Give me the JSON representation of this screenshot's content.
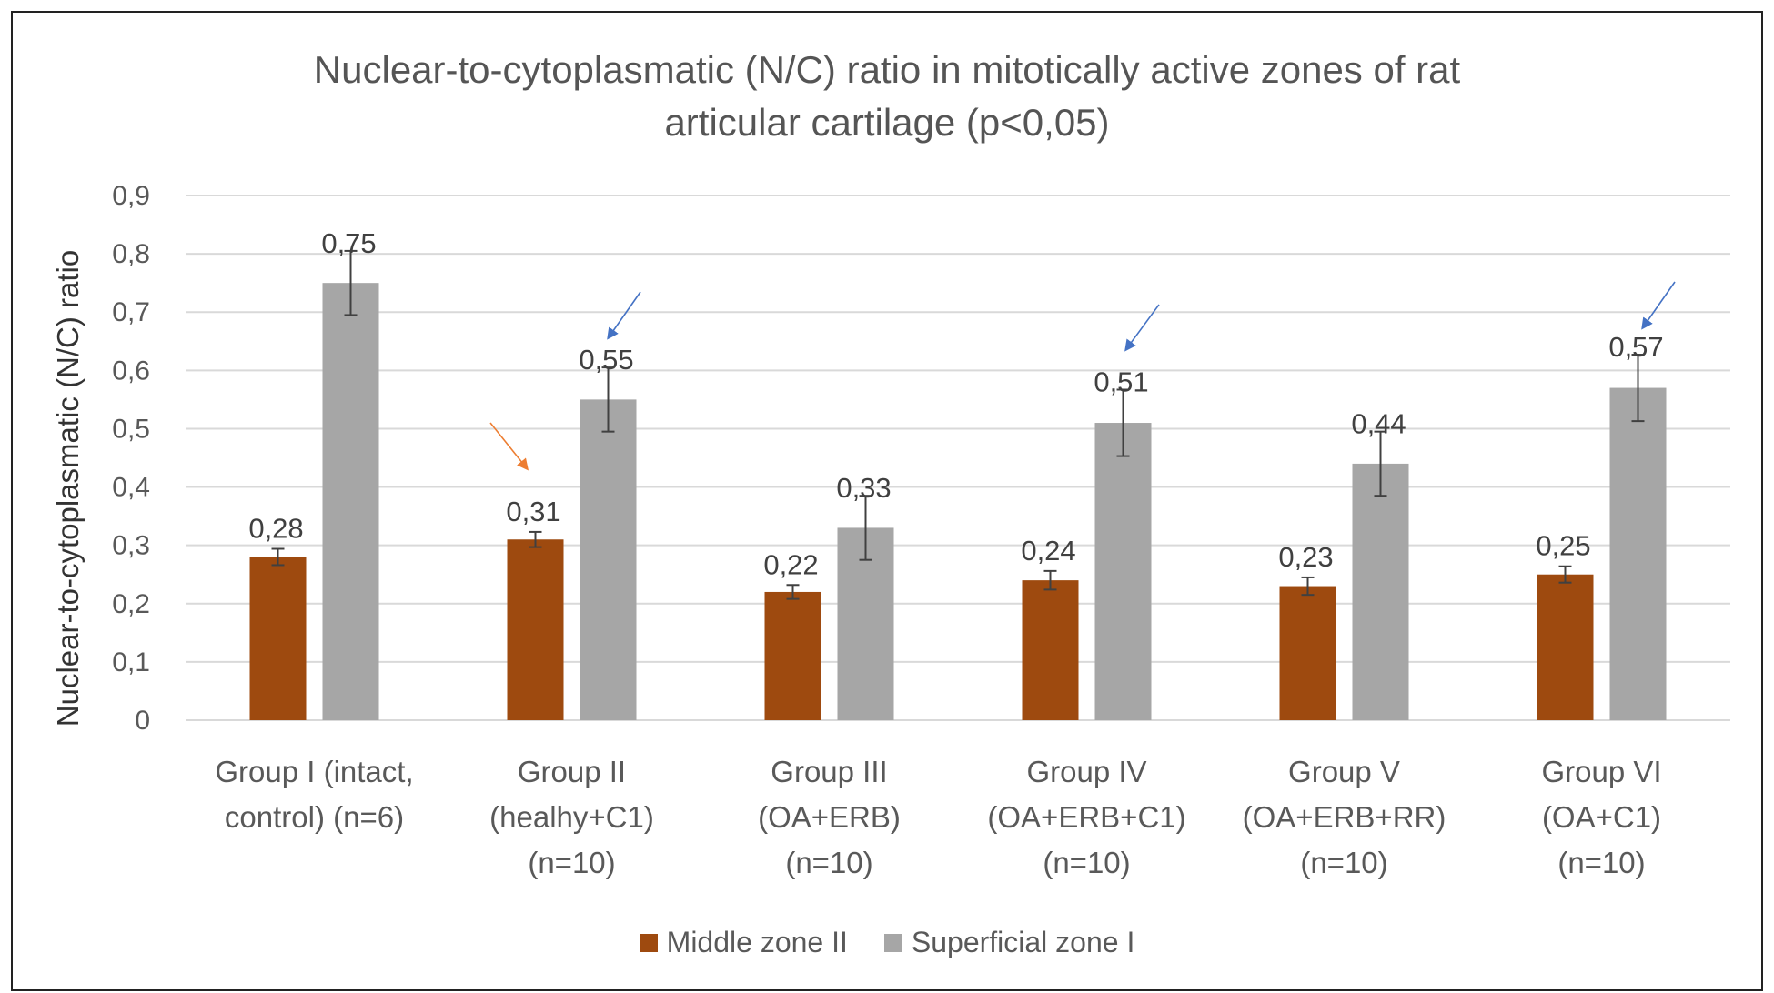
{
  "chart_data": {
    "type": "bar",
    "title": "Nuclear-to-cytoplasmatic (N/C) ratio in mitotically active zones of rat articular cartilage (p<0,05)",
    "title_lines": [
      "Nuclear-to-cytoplasmatic (N/C) ratio in mitotically active zones of rat",
      "articular cartilage (p<0,05)"
    ],
    "xlabel": "",
    "ylabel": "Nuclear-to-cytoplasmatic (N/C) ratio",
    "ylim": [
      0,
      0.9
    ],
    "yticks": [
      "0",
      "0,1",
      "0,2",
      "0,3",
      "0,4",
      "0,5",
      "0,6",
      "0,7",
      "0,8",
      "0,9"
    ],
    "grid": true,
    "legend_position": "bottom",
    "categories": [
      [
        "Group I (intact,",
        "control) (n=6)"
      ],
      [
        "Group II",
        "(healhy+C1)",
        "(n=10)"
      ],
      [
        "Group III",
        "(OA+ERB)",
        "(n=10)"
      ],
      [
        "Group IV",
        "(OA+ERB+C1)",
        "(n=10)"
      ],
      [
        "Group V",
        "(OA+ERB+RR)",
        "(n=10)"
      ],
      [
        "Group VI",
        "(OA+C1)",
        "(n=10)"
      ]
    ],
    "series": [
      {
        "name": "Middle zone II",
        "color": "#9e4a0f",
        "values": [
          0.28,
          0.31,
          0.22,
          0.24,
          0.23,
          0.25
        ],
        "labels": [
          "0,28",
          "0,31",
          "0,22",
          "0,24",
          "0,23",
          "0,25"
        ],
        "errors": [
          0.014,
          0.013,
          0.012,
          0.016,
          0.015,
          0.014
        ]
      },
      {
        "name": "Superficial zone I",
        "color": "#a6a6a6",
        "values": [
          0.75,
          0.55,
          0.33,
          0.51,
          0.44,
          0.57
        ],
        "labels": [
          "0,75",
          "0,55",
          "0,33",
          "0,51",
          "0,44",
          "0,57"
        ],
        "errors": [
          0.055,
          0.055,
          0.055,
          0.057,
          0.055,
          0.057
        ]
      }
    ],
    "annotations": [
      {
        "type": "arrow",
        "color": "#ed7d31",
        "points_to": "Group II Middle zone II"
      },
      {
        "type": "arrow",
        "color": "#4472c4",
        "points_to": "Group II Superficial zone I"
      },
      {
        "type": "arrow",
        "color": "#4472c4",
        "points_to": "Group IV Superficial zone I"
      },
      {
        "type": "arrow",
        "color": "#4472c4",
        "points_to": "Group VI Superficial zone I"
      }
    ]
  }
}
